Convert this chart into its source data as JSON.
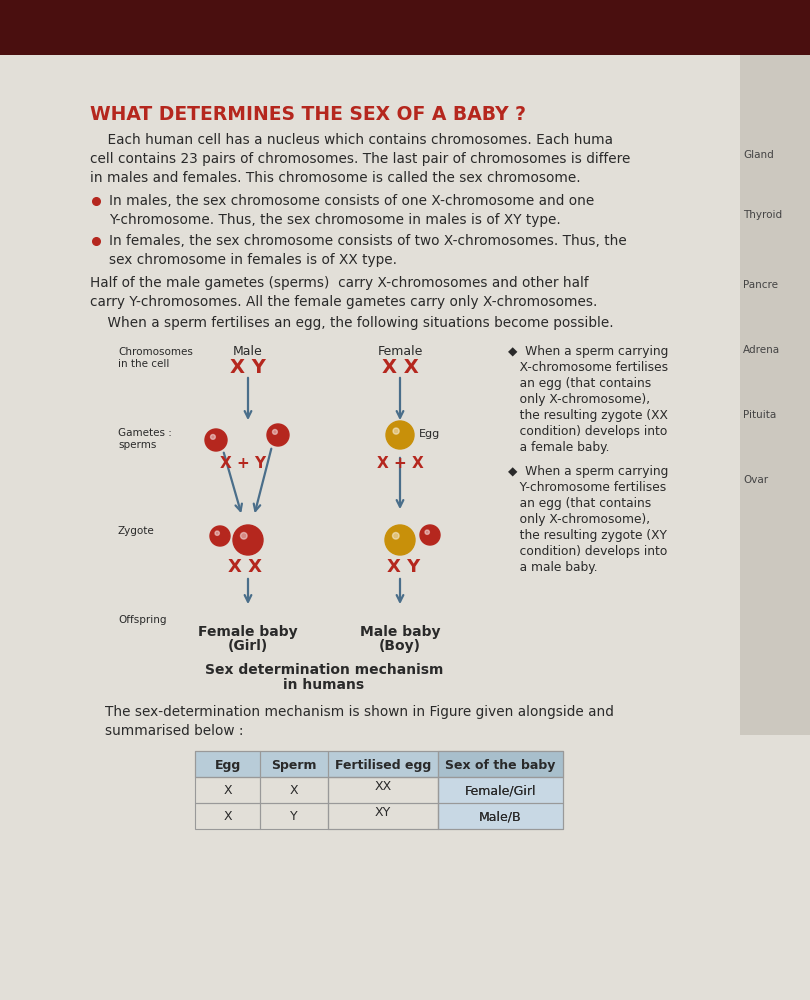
{
  "title": "WHAT DETERMINES THE SEX OF A BABY ?",
  "title_color": "#b5271e",
  "bg_color": "#d8d5cc",
  "page_color": "#e2dfd8",
  "dark_top_color": "#5a1010",
  "right_sidebar_color": "#c8c4bb",
  "body_line1": "    Each human cell has a nucleus which contains chromosomes. Each huma",
  "body_line2": "cell contains 23 pairs of chromosomes. The last pair of chromosomes is differe",
  "body_line3": "in males and females. This chromosome is called the sex chromosome.",
  "bullet1a": "In males, the sex chromosome consists of one X-chromosome and one",
  "bullet1b": "Y-chromosome. Thus, the sex chromosome in males is of XY type.",
  "bullet2a": "In females, the sex chromosome consists of two X-chromosomes. Thus, the",
  "bullet2b": "sex chromosome in females is of XX type.",
  "para2a": "Half of the male gametes (sperms)  carry X-chromosomes and other half",
  "para2b": "carry Y-chromosomes. All the female gametes carry only X-chromosomes.",
  "para3": "    When a sperm fertilises an egg, the following situations become possible.",
  "male_label": "Male",
  "female_label": "Female",
  "male_chrom": "X Y",
  "female_chrom": "X X",
  "chrom_label1": "Chromosomes",
  "chrom_label2": "in the cell",
  "gametes_label1": "Gametes :",
  "gametes_label2": "sperms",
  "egg_label": "Egg",
  "male_gametes": "X + Y",
  "female_gametes": "X + X",
  "zygote_label": "Zygote",
  "male_zygote_chrom": "X X",
  "female_zygote_chrom": "X Y",
  "offspring_label": "Offspring",
  "female_baby_label": "Female baby",
  "female_baby_sub": "(Girl)",
  "male_baby_label": "Male baby",
  "male_baby_sub": "(Boy)",
  "diagram_caption1": "Sex determination mechanism",
  "diagram_caption2": "in humans",
  "rt1_lines": [
    "◆  When a sperm carrying",
    "   X-chromosome fertilises",
    "   an egg (that contains",
    "   only X-chromosome),",
    "   the resulting zygote (XX",
    "   condition) develops into",
    "   a female baby."
  ],
  "rt2_lines": [
    "◆  When a sperm carrying",
    "   Y-chromosome fertilises",
    "   an egg (that contains",
    "   only X-chromosome),",
    "   the resulting zygote (XY",
    "   condition) develops into",
    "   a male baby."
  ],
  "bottom_line1": "The sex-determination mechanism is shown in Figure given alongside and",
  "bottom_line2": "summarised below :",
  "table_headers": [
    "Egg",
    "Sperm",
    "Fertilised egg",
    "Sex of the baby"
  ],
  "table_row1_col1": "X",
  "table_row1_col2": "X",
  "table_row1_col3a": "XX",
  "table_row1_col3b": "",
  "table_row1_col4": "Female/Girl",
  "table_row2_col1": "X",
  "table_row2_col2": "Y",
  "table_row2_col3a": "",
  "table_row2_col3b": "XY",
  "table_row2_col4": "Male/B",
  "red_color": "#b5271e",
  "dark_text": "#2a2a2a",
  "arrow_color": "#4a6e8a",
  "sperm_color": "#b5271e",
  "egg_color": "#c8900a",
  "egg_highlight": "#e8b030",
  "table_header_bg": "#b8ccd8"
}
